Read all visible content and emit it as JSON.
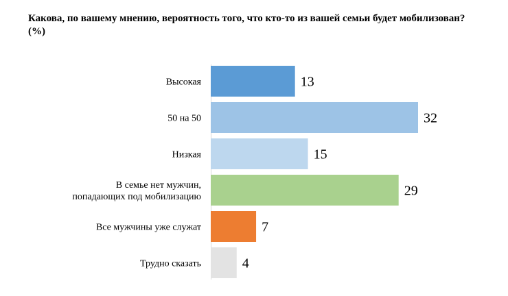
{
  "title": "Какова, по вашему мнению, вероятность того, что кто-то из вашей семьи будет мобилизован? (%)",
  "chart_data": {
    "type": "bar",
    "orientation": "horizontal",
    "title": "Какова, по вашему мнению, вероятность того, что кто-то из вашей семьи будет мобилизован? (%)",
    "xlabel": "",
    "ylabel": "",
    "grid": false,
    "legend": "none",
    "categories": [
      [
        "Высокая"
      ],
      [
        "50 на 50"
      ],
      [
        "Низкая"
      ],
      [
        "В семье нет мужчин,",
        "попадающих под мобилизацию"
      ],
      [
        "Все мужчины уже служат"
      ],
      [
        "Трудно сказать"
      ]
    ],
    "values": [
      13,
      32,
      15,
      29,
      7,
      4
    ],
    "colors": [
      "#5b9bd5",
      "#9dc3e6",
      "#bdd7ee",
      "#a9d18e",
      "#ed7d31",
      "#e3e3e3"
    ],
    "xlim": [
      0,
      32
    ]
  }
}
